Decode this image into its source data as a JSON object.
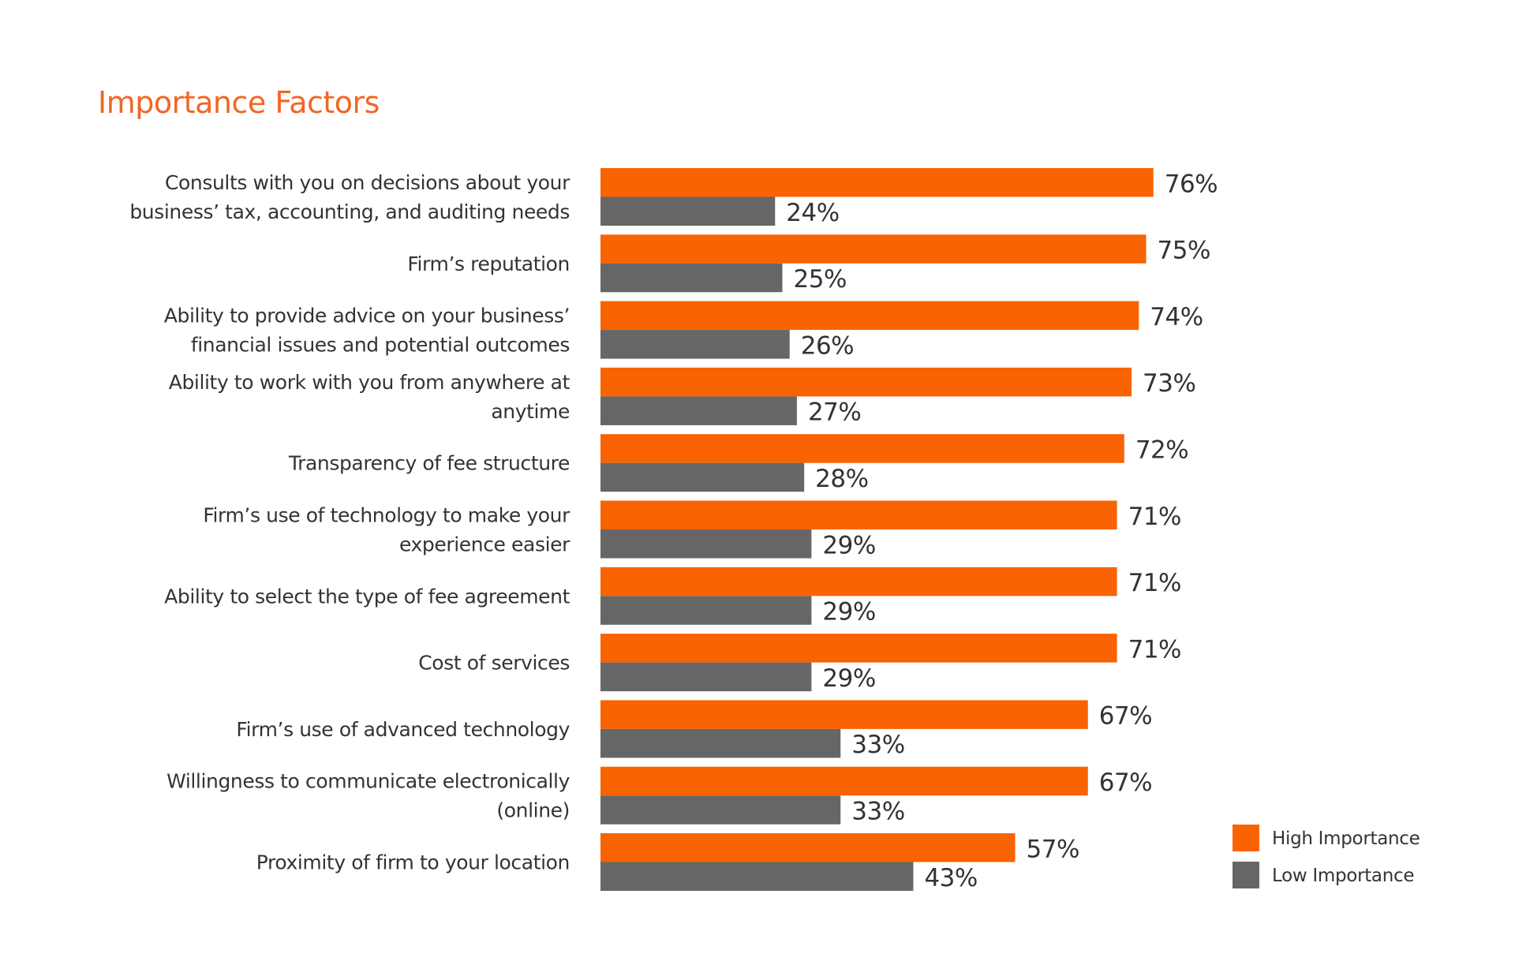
{
  "chart_data": {
    "type": "bar",
    "orientation": "horizontal",
    "title": "Importance Factors",
    "xlabel": "",
    "ylabel": "",
    "xlim": [
      0,
      100
    ],
    "grid": false,
    "legend_position": "bottom-right",
    "value_suffix": "%",
    "categories": [
      [
        "Consults with you on decisions about your",
        "business’ tax, accounting, and auditing needs"
      ],
      [
        "Firm’s reputation"
      ],
      [
        "Ability to provide advice on your business’",
        "financial issues and potential outcomes"
      ],
      [
        "Ability to work with you from anywhere at",
        "anytime"
      ],
      [
        "Transparency of fee structure"
      ],
      [
        "Firm’s use of technology to make your",
        "experience easier"
      ],
      [
        "Ability to select the type of fee agreement"
      ],
      [
        "Cost of services"
      ],
      [
        "Firm’s use of advanced technology"
      ],
      [
        "Willingness to communicate electronically",
        "(online)"
      ],
      [
        "Proximity of firm to your location"
      ]
    ],
    "series": [
      {
        "name": "High Importance",
        "color": "#f96302",
        "values": [
          76,
          75,
          74,
          73,
          72,
          71,
          71,
          71,
          67,
          67,
          57
        ]
      },
      {
        "name": "Low Importance",
        "color": "#666666",
        "values": [
          24,
          25,
          26,
          27,
          28,
          29,
          29,
          29,
          33,
          33,
          43
        ]
      }
    ]
  },
  "colors": {
    "title": "#f26522",
    "text": "#333333"
  }
}
